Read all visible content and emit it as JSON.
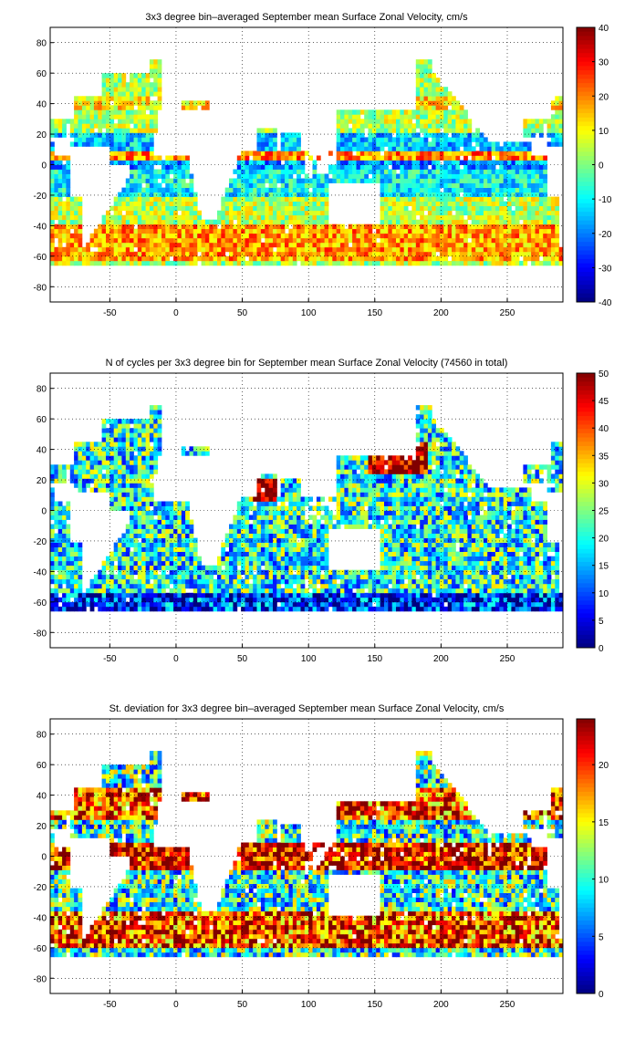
{
  "chart_data": [
    {
      "type": "heatmap",
      "title": "3x3 degree bin–averaged September mean Surface Zonal Velocity, cm/s",
      "x_ticks": [
        -50,
        0,
        50,
        100,
        150,
        200,
        250
      ],
      "y_ticks": [
        80,
        60,
        40,
        20,
        0,
        -20,
        -40,
        -60,
        -80
      ],
      "xlim": [
        -95,
        292
      ],
      "ylim": [
        -90,
        90
      ],
      "colormap": "jet",
      "colorbar": {
        "min": -40,
        "max": 40,
        "ticks": [
          40,
          30,
          20,
          10,
          0,
          -10,
          -20,
          -30,
          -40
        ]
      },
      "grid": true,
      "bin_size_deg": 3,
      "summary_pattern": "westward (negative) flow in equatorial bands around 0 to 15 degrees latitude, eastward (positive) flow along Antarctic Circumpolar Current (-40 to -60) and North Equatorial Countercurrent (~5 to 10 N)"
    },
    {
      "type": "heatmap",
      "title": "N of cycles per 3x3 degree bin for September mean Surface Zonal Velocity (74560 in total)",
      "x_ticks": [
        -50,
        0,
        50,
        100,
        150,
        200,
        250
      ],
      "y_ticks": [
        80,
        60,
        40,
        20,
        0,
        -20,
        -40,
        -60,
        -80
      ],
      "xlim": [
        -95,
        292
      ],
      "ylim": [
        -90,
        90
      ],
      "colormap": "jet",
      "colorbar": {
        "min": 0,
        "max": 50,
        "ticks": [
          50,
          45,
          40,
          35,
          30,
          25,
          20,
          15,
          10,
          5,
          0
        ]
      },
      "grid": true,
      "bin_size_deg": 3,
      "total_cycles": 74560
    },
    {
      "type": "heatmap",
      "title": "St. deviation for 3x3 degree bin–averaged September mean Surface Zonal Velocity, cm/s",
      "x_ticks": [
        -50,
        0,
        50,
        100,
        150,
        200,
        250
      ],
      "y_ticks": [
        80,
        60,
        40,
        20,
        0,
        -20,
        -40,
        -60,
        -80
      ],
      "xlim": [
        -95,
        292
      ],
      "ylim": [
        -90,
        90
      ],
      "colormap": "jet",
      "colorbar": {
        "min": 0,
        "max": 24,
        "ticks": [
          20,
          15,
          10,
          5,
          0
        ]
      },
      "grid": true,
      "bin_size_deg": 3
    }
  ]
}
